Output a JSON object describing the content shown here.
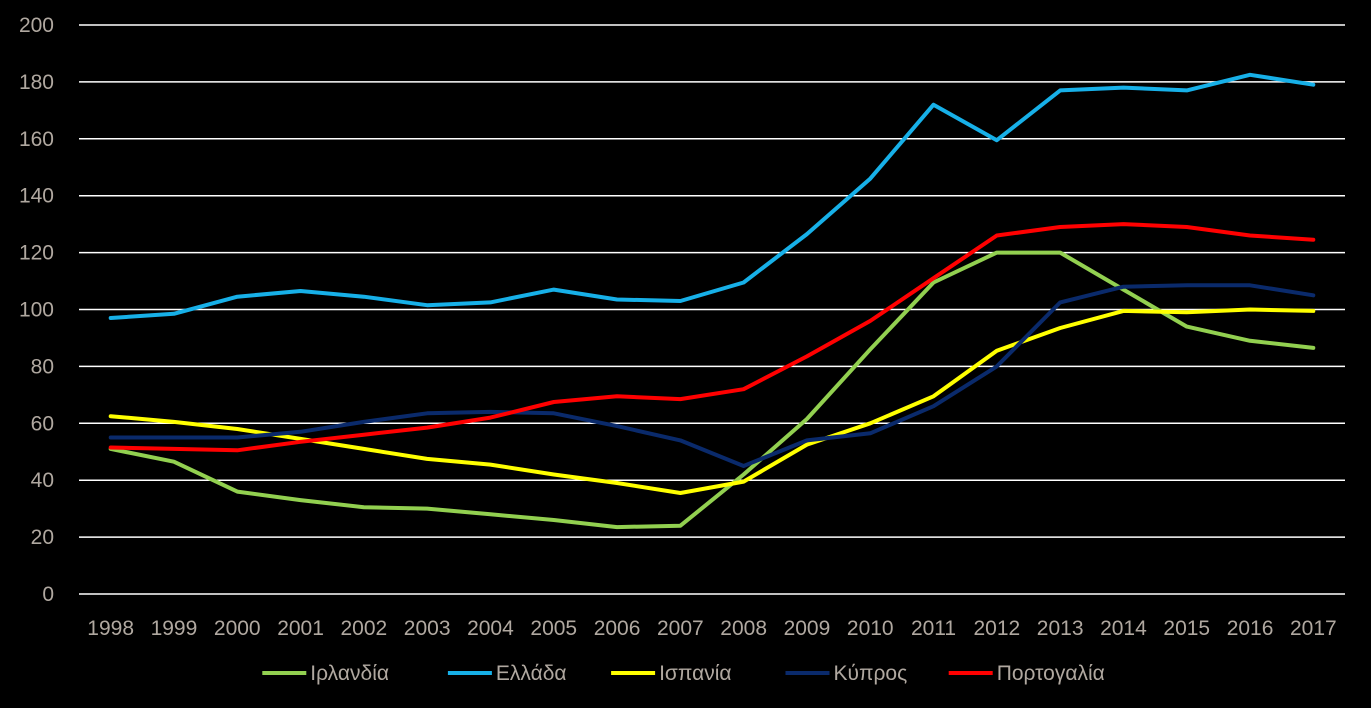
{
  "chart_data": {
    "type": "line",
    "title": "",
    "xlabel": "",
    "ylabel": "",
    "ylim": [
      0,
      200
    ],
    "yticks": [
      0,
      20,
      40,
      60,
      80,
      100,
      120,
      140,
      160,
      180,
      200
    ],
    "grid": true,
    "legend_position": "bottom",
    "categories": [
      "1998",
      "1999",
      "2000",
      "2001",
      "2002",
      "2003",
      "2004",
      "2005",
      "2006",
      "2007",
      "2008",
      "2009",
      "2010",
      "2011",
      "2012",
      "2013",
      "2014",
      "2015",
      "2016",
      "2017"
    ],
    "series": [
      {
        "name": "Ιρλανδία",
        "color": "#92d050",
        "values": [
          51,
          46.5,
          36,
          33,
          30.5,
          30,
          28,
          26,
          23.5,
          24,
          42,
          61.5,
          86,
          109.5,
          120,
          120,
          107,
          94,
          89,
          86.5
        ]
      },
      {
        "name": "Ελλάδα",
        "color": "#17b0e8",
        "values": [
          97,
          98.5,
          104.5,
          106.5,
          104.5,
          101.5,
          102.5,
          107,
          103.5,
          103,
          109.5,
          126.5,
          146,
          172,
          159.5,
          177,
          178,
          177,
          182.5,
          179
        ]
      },
      {
        "name": "Ισπανία",
        "color": "#ffff00",
        "values": [
          62.5,
          60.5,
          58,
          54.5,
          51,
          47.5,
          45.5,
          42,
          39,
          35.5,
          39.5,
          52.5,
          60,
          69.5,
          85.5,
          93.5,
          99.5,
          99,
          100,
          99.5
        ]
      },
      {
        "name": "Κύπρος",
        "color": "#0a2a6b",
        "values": [
          55,
          55,
          55,
          57,
          60.5,
          63.5,
          64,
          63.5,
          59,
          54,
          45,
          54,
          56.5,
          66,
          80,
          102.5,
          108,
          108.5,
          108.5,
          105
        ]
      },
      {
        "name": "Πορτογαλία",
        "color": "#ff0000",
        "values": [
          51.5,
          51,
          50.5,
          53.5,
          56,
          58.5,
          62,
          67.5,
          69.5,
          68.5,
          72,
          83.5,
          96,
          111,
          126,
          129,
          130,
          129,
          126,
          124.5
        ]
      }
    ]
  }
}
